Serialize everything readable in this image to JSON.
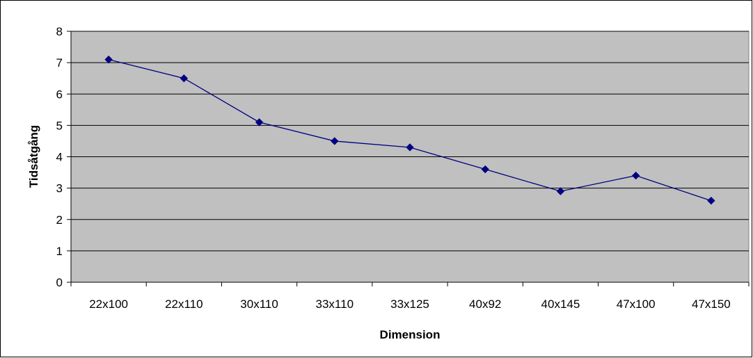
{
  "chart_data": {
    "type": "line",
    "title": "",
    "xlabel": "Dimension",
    "ylabel": "Tidsåtgång",
    "categories": [
      "22x100",
      "22x110",
      "30x110",
      "33x110",
      "33x125",
      "40x92",
      "40x145",
      "47x100",
      "47x150"
    ],
    "series": [
      {
        "values": [
          7.1,
          6.5,
          5.1,
          4.5,
          4.3,
          3.6,
          2.9,
          3.4,
          2.6
        ]
      }
    ],
    "ylim": [
      0,
      8
    ],
    "yticks": [
      "0",
      "1",
      "2",
      "3",
      "4",
      "5",
      "6",
      "7",
      "8"
    ],
    "grid": true,
    "legend": "none",
    "colors": {
      "plot_background": "#c0c0c0",
      "line": "#000080",
      "marker": "#000080",
      "gridline": "#000000"
    }
  }
}
